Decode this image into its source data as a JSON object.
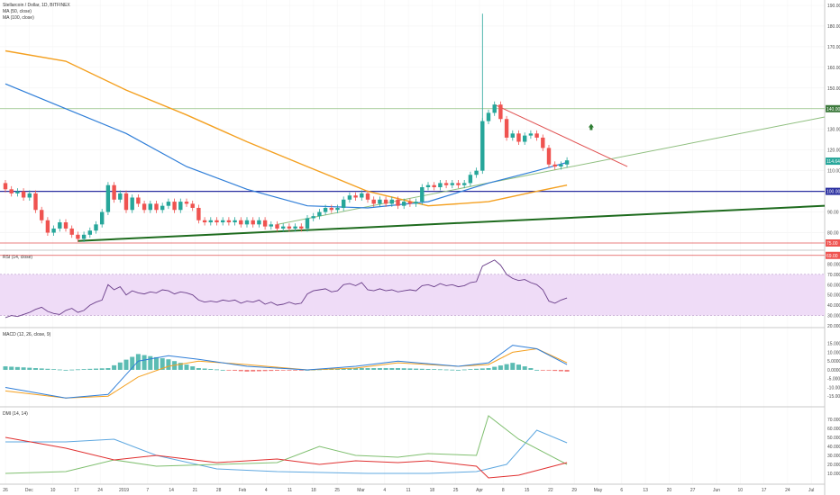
{
  "chart_data": [
    {
      "type": "candlestick",
      "title": "Stellarcoin / Dollar, 1D, BITFINEX",
      "indicators": [
        "MA (50, close)",
        "MA (100, close)"
      ],
      "ylim": [
        75,
        190
      ],
      "y_ticks": [
        190.0,
        180.0,
        170.0,
        160.0,
        150.0,
        140.0,
        130.0,
        120.0,
        110.0,
        100.0,
        90.0,
        80.0
      ],
      "price_tags": {
        "resistance": "140.00",
        "current": "114.64",
        "support": "100.00",
        "lower_1": "75.00",
        "lower_2": "69.00"
      },
      "x_tick_labels": [
        "26",
        "Dec",
        "10",
        "17",
        "24",
        "2019",
        "7",
        "14",
        "21",
        "28",
        "Feb",
        "4",
        "11",
        "18",
        "25",
        "Mar",
        "4",
        "11",
        "18",
        "25",
        "Apr",
        "8",
        "15",
        "22",
        "29",
        "May",
        "6",
        "13",
        "20",
        "27",
        "Jun",
        "10",
        "17",
        "24",
        "Jul"
      ],
      "candles": [
        [
          104,
          101
        ],
        [
          101,
          99
        ],
        [
          99,
          100
        ],
        [
          100,
          97
        ],
        [
          97,
          99
        ],
        [
          99,
          91
        ],
        [
          91,
          86
        ],
        [
          86,
          80
        ],
        [
          80,
          82
        ],
        [
          82,
          85
        ],
        [
          85,
          82
        ],
        [
          82,
          79
        ],
        [
          79,
          77
        ],
        [
          77,
          79
        ],
        [
          79,
          81
        ],
        [
          81,
          84
        ],
        [
          84,
          90
        ],
        [
          90,
          103
        ],
        [
          103,
          96
        ],
        [
          96,
          99
        ],
        [
          99,
          91
        ],
        [
          91,
          97
        ],
        [
          97,
          94
        ],
        [
          94,
          91
        ],
        [
          91,
          94
        ],
        [
          94,
          91
        ],
        [
          91,
          93
        ],
        [
          93,
          95
        ],
        [
          95,
          91
        ],
        [
          91,
          95
        ],
        [
          95,
          94
        ],
        [
          94,
          92
        ],
        [
          92,
          86
        ],
        [
          86,
          85
        ],
        [
          85,
          86
        ],
        [
          86,
          85
        ],
        [
          85,
          86
        ],
        [
          86,
          85
        ],
        [
          85,
          86
        ],
        [
          86,
          84
        ],
        [
          84,
          86
        ],
        [
          86,
          84
        ],
        [
          84,
          86
        ],
        [
          86,
          83
        ],
        [
          83,
          84
        ],
        [
          84,
          82
        ],
        [
          82,
          83
        ],
        [
          83,
          82
        ],
        [
          82,
          83
        ],
        [
          83,
          82
        ],
        [
          82,
          87
        ],
        [
          87,
          88
        ],
        [
          88,
          90
        ],
        [
          90,
          92
        ],
        [
          92,
          91
        ],
        [
          91,
          92
        ],
        [
          92,
          96
        ],
        [
          96,
          98
        ],
        [
          98,
          97
        ],
        [
          97,
          99
        ],
        [
          99,
          96
        ],
        [
          96,
          94
        ],
        [
          94,
          96
        ],
        [
          96,
          94
        ],
        [
          94,
          96
        ],
        [
          96,
          93
        ],
        [
          93,
          95
        ],
        [
          95,
          94
        ],
        [
          94,
          95
        ],
        [
          95,
          102
        ],
        [
          102,
          103
        ],
        [
          103,
          102
        ],
        [
          102,
          104
        ],
        [
          104,
          103
        ],
        [
          103,
          104
        ],
        [
          104,
          103
        ],
        [
          103,
          104
        ],
        [
          104,
          108
        ],
        [
          108,
          110
        ],
        [
          110,
          134
        ],
        [
          134,
          138
        ],
        [
          138,
          142
        ],
        [
          142,
          135
        ],
        [
          135,
          126
        ],
        [
          126,
          128
        ],
        [
          128,
          124
        ],
        [
          124,
          127
        ],
        [
          127,
          128
        ],
        [
          128,
          126
        ],
        [
          126,
          121
        ],
        [
          121,
          113
        ],
        [
          113,
          112
        ],
        [
          112,
          113
        ],
        [
          113,
          115
        ]
      ],
      "ma50": [
        [
          0,
          152
        ],
        [
          10,
          140
        ],
        [
          20,
          128
        ],
        [
          30,
          112
        ],
        [
          40,
          101
        ],
        [
          50,
          93
        ],
        [
          60,
          92
        ],
        [
          70,
          95
        ],
        [
          80,
          104
        ],
        [
          88,
          110
        ],
        [
          93,
          114
        ]
      ],
      "ma100": [
        [
          0,
          168
        ],
        [
          10,
          163
        ],
        [
          20,
          149
        ],
        [
          30,
          137
        ],
        [
          40,
          124
        ],
        [
          50,
          112
        ],
        [
          60,
          100
        ],
        [
          70,
          93
        ],
        [
          80,
          95
        ],
        [
          88,
          100
        ],
        [
          93,
          103
        ]
      ],
      "trendlines": [
        "lower-uptrend",
        "upper-uptrend",
        "descending-resistance"
      ],
      "hlines": [
        140,
        100,
        75,
        69
      ]
    },
    {
      "type": "line",
      "title": "RSI (14, close)",
      "ylim": [
        20,
        90
      ],
      "y_ticks": [
        80.0,
        70.0,
        60.0,
        50.0,
        40.0,
        30.0,
        20.0
      ],
      "band": [
        30,
        70
      ],
      "values": [
        28,
        30,
        29,
        31,
        33,
        36,
        38,
        34,
        32,
        31,
        35,
        37,
        33,
        35,
        40,
        43,
        45,
        60,
        55,
        58,
        50,
        54,
        52,
        51,
        53,
        52,
        55,
        54,
        51,
        53,
        52,
        50,
        45,
        43,
        44,
        43,
        45,
        44,
        45,
        42,
        44,
        43,
        45,
        41,
        43,
        40,
        41,
        43,
        41,
        42,
        51,
        54,
        55,
        56,
        53,
        54,
        60,
        61,
        59,
        62,
        55,
        54,
        56,
        54,
        55,
        53,
        54,
        55,
        54,
        59,
        60,
        58,
        61,
        59,
        60,
        58,
        59,
        62,
        63,
        78,
        81,
        84,
        79,
        70,
        66,
        64,
        65,
        62,
        60,
        55,
        44,
        42,
        45,
        47
      ]
    },
    {
      "type": "bar+line",
      "title": "MACD (12, 26, close, 9)",
      "ylim": [
        -20,
        22
      ],
      "y_ticks": [
        15.0,
        10.0,
        5.0,
        0.0,
        -5.0,
        -10.0,
        -15.0
      ],
      "macd_points": [
        [
          0,
          -10
        ],
        [
          10,
          -16
        ],
        [
          17,
          -14
        ],
        [
          22,
          5
        ],
        [
          27,
          8
        ],
        [
          32,
          6
        ],
        [
          40,
          2
        ],
        [
          50,
          0
        ],
        [
          58,
          2
        ],
        [
          65,
          5
        ],
        [
          75,
          2
        ],
        [
          80,
          4
        ],
        [
          84,
          14
        ],
        [
          88,
          12
        ],
        [
          93,
          3
        ]
      ],
      "signal_points": [
        [
          0,
          -12
        ],
        [
          10,
          -16
        ],
        [
          17,
          -15
        ],
        [
          22,
          -4
        ],
        [
          27,
          2
        ],
        [
          32,
          5
        ],
        [
          40,
          3
        ],
        [
          50,
          0
        ],
        [
          58,
          1
        ],
        [
          65,
          4
        ],
        [
          75,
          2
        ],
        [
          80,
          3
        ],
        [
          84,
          10
        ],
        [
          88,
          12
        ],
        [
          93,
          4
        ]
      ]
    },
    {
      "type": "line",
      "title": "DMI (14, 14)",
      "ylim": [
        0,
        80
      ],
      "y_ticks": [
        70.0,
        60.0,
        50.0,
        40.0,
        30.0,
        20.0,
        10.0
      ],
      "adx_points": [
        [
          0,
          45
        ],
        [
          10,
          45
        ],
        [
          18,
          48
        ],
        [
          25,
          30
        ],
        [
          35,
          15
        ],
        [
          45,
          12
        ],
        [
          60,
          10
        ],
        [
          70,
          10
        ],
        [
          78,
          12
        ],
        [
          83,
          20
        ],
        [
          88,
          58
        ],
        [
          93,
          44
        ]
      ],
      "plus_di_points": [
        [
          0,
          10
        ],
        [
          10,
          12
        ],
        [
          18,
          25
        ],
        [
          25,
          18
        ],
        [
          35,
          20
        ],
        [
          45,
          22
        ],
        [
          52,
          40
        ],
        [
          58,
          30
        ],
        [
          65,
          28
        ],
        [
          70,
          32
        ],
        [
          78,
          30
        ],
        [
          80,
          74
        ],
        [
          85,
          48
        ],
        [
          93,
          20
        ]
      ],
      "minus_di_points": [
        [
          0,
          50
        ],
        [
          10,
          38
        ],
        [
          18,
          25
        ],
        [
          25,
          30
        ],
        [
          35,
          22
        ],
        [
          45,
          26
        ],
        [
          52,
          20
        ],
        [
          58,
          24
        ],
        [
          65,
          22
        ],
        [
          70,
          24
        ],
        [
          78,
          18
        ],
        [
          80,
          5
        ],
        [
          85,
          8
        ],
        [
          93,
          22
        ]
      ]
    }
  ],
  "colors": {
    "up": "#26a69a",
    "down": "#ef5350",
    "ma50": "#2f7ed8",
    "ma100": "#f4a020",
    "resistance_line": "#8fbf7f",
    "support_line": "#2a2fa0",
    "lower_lines": "#e05050",
    "uptrend": "#1e6b1e",
    "rsi_line": "#6b3f8a",
    "rsi_band": "#efdcf7",
    "macd": "#2f7ed8",
    "signal": "#f4a020",
    "adx": "#5fa8e0",
    "plus_di": "#7fbf6f",
    "minus_di": "#e03030",
    "arrow": "#2e7d32"
  }
}
